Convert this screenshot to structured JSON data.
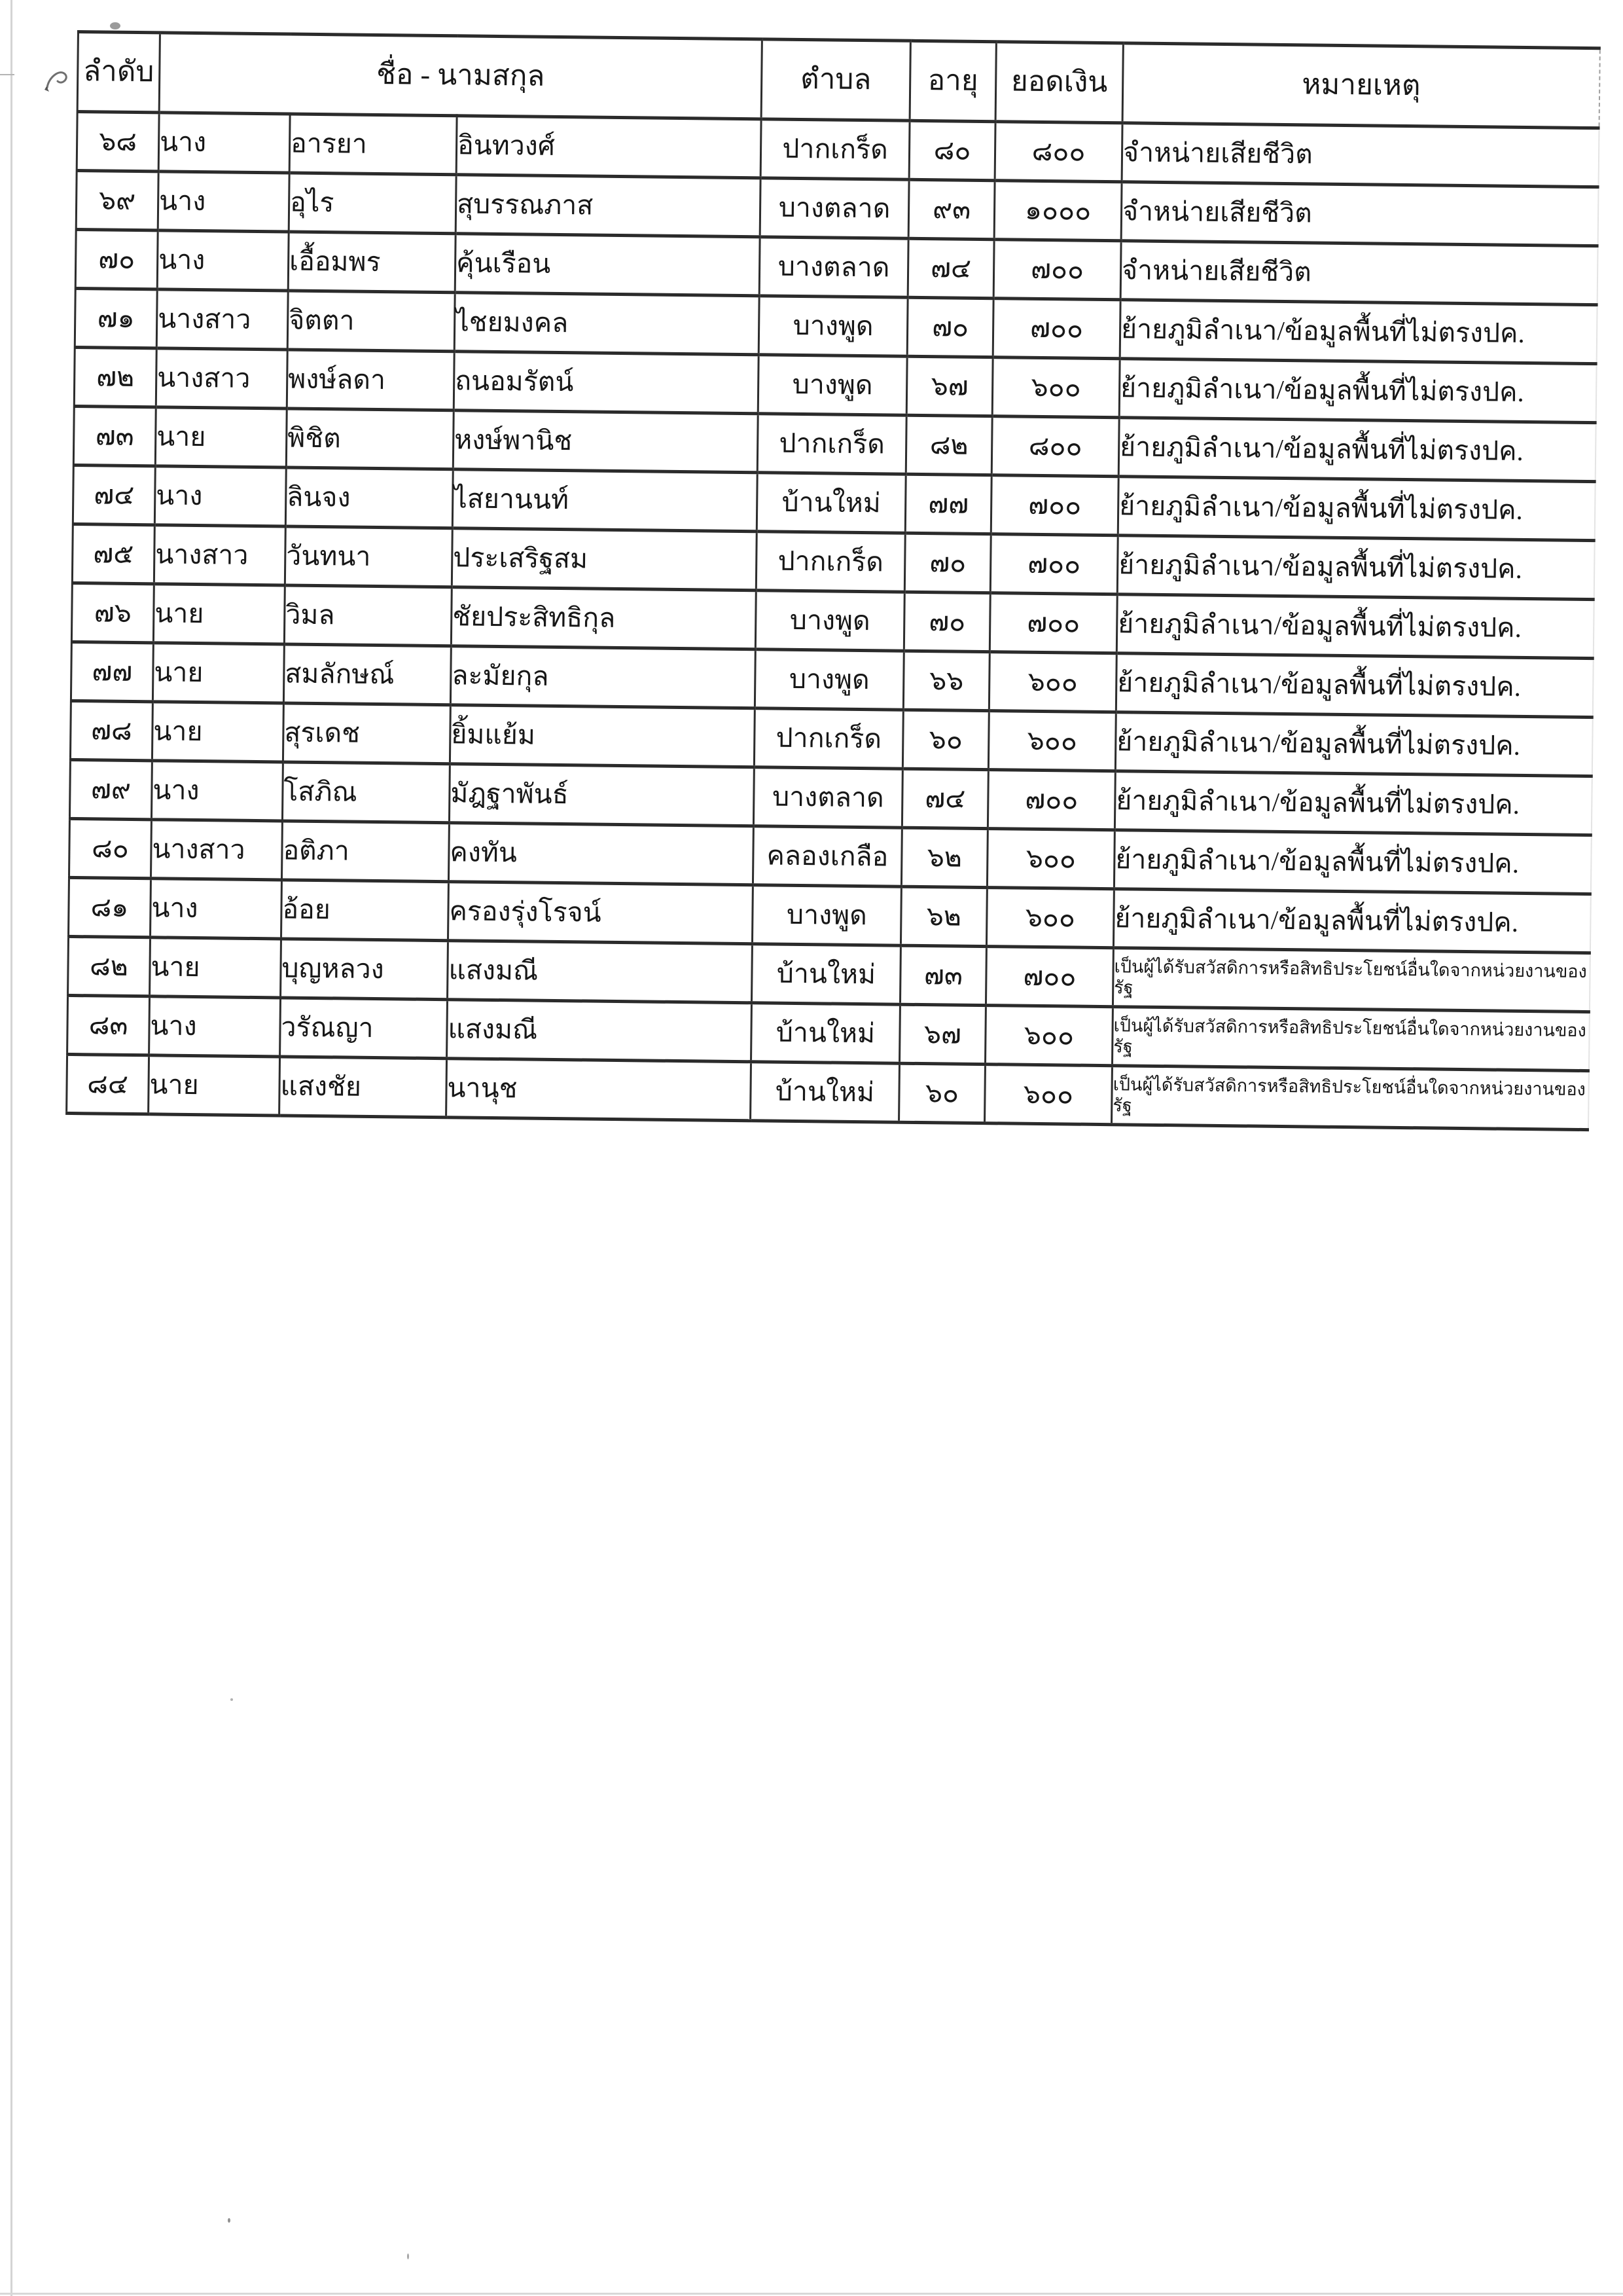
{
  "table": {
    "headers": {
      "index": "ลำดับ",
      "name": "ชื่อ - นามสกุล",
      "subdistrict": "ตำบล",
      "age": "อายุ",
      "amount": "ยอดเงิน",
      "remark": "หมายเหตุ"
    },
    "rows": [
      {
        "no": "๖๘",
        "title": "นาง",
        "first_name": "อารยา",
        "last_name": "อินทวงศ์",
        "subdistrict": "ปากเกร็ด",
        "age": "๘๐",
        "amount": "๘๐๐",
        "remark": "จำหน่ายเสียชีวิต",
        "remark_small": false
      },
      {
        "no": "๖๙",
        "title": "นาง",
        "first_name": "อุไร",
        "last_name": "สุบรรณภาส",
        "subdistrict": "บางตลาด",
        "age": "๙๓",
        "amount": "๑๐๐๐",
        "remark": "จำหน่ายเสียชีวิต",
        "remark_small": false
      },
      {
        "no": "๗๐",
        "title": "นาง",
        "first_name": "เอื้อมพร",
        "last_name": "คุ้นเรือน",
        "subdistrict": "บางตลาด",
        "age": "๗๔",
        "amount": "๗๐๐",
        "remark": "จำหน่ายเสียชีวิต",
        "remark_small": false
      },
      {
        "no": "๗๑",
        "title": "นางสาว",
        "first_name": "จิตตา",
        "last_name": "ไชยมงคล",
        "subdistrict": "บางพูด",
        "age": "๗๐",
        "amount": "๗๐๐",
        "remark": "ย้ายภูมิลำเนา/ข้อมูลพื้นที่ไม่ตรงปค.",
        "remark_small": false
      },
      {
        "no": "๗๒",
        "title": "นางสาว",
        "first_name": "พงษ์ลดา",
        "last_name": "ถนอมรัตน์",
        "subdistrict": "บางพูด",
        "age": "๖๗",
        "amount": "๖๐๐",
        "remark": "ย้ายภูมิลำเนา/ข้อมูลพื้นที่ไม่ตรงปค.",
        "remark_small": false
      },
      {
        "no": "๗๓",
        "title": "นาย",
        "first_name": "พิชิต",
        "last_name": "หงษ์พานิช",
        "subdistrict": "ปากเกร็ด",
        "age": "๘๒",
        "amount": "๘๐๐",
        "remark": "ย้ายภูมิลำเนา/ข้อมูลพื้นที่ไม่ตรงปค.",
        "remark_small": false
      },
      {
        "no": "๗๔",
        "title": "นาง",
        "first_name": "ลินจง",
        "last_name": "ไสยานนท์",
        "subdistrict": "บ้านใหม่",
        "age": "๗๗",
        "amount": "๗๐๐",
        "remark": "ย้ายภูมิลำเนา/ข้อมูลพื้นที่ไม่ตรงปค.",
        "remark_small": false
      },
      {
        "no": "๗๕",
        "title": "นางสาว",
        "first_name": "วันทนา",
        "last_name": "ประเสริฐสม",
        "subdistrict": "ปากเกร็ด",
        "age": "๗๐",
        "amount": "๗๐๐",
        "remark": "ย้ายภูมิลำเนา/ข้อมูลพื้นที่ไม่ตรงปค.",
        "remark_small": false
      },
      {
        "no": "๗๖",
        "title": "นาย",
        "first_name": "วิมล",
        "last_name": "ชัยประสิทธิกุล",
        "subdistrict": "บางพูด",
        "age": "๗๐",
        "amount": "๗๐๐",
        "remark": "ย้ายภูมิลำเนา/ข้อมูลพื้นที่ไม่ตรงปค.",
        "remark_small": false
      },
      {
        "no": "๗๗",
        "title": "นาย",
        "first_name": "สมลักษณ์",
        "last_name": "ละมัยกุล",
        "subdistrict": "บางพูด",
        "age": "๖๖",
        "amount": "๖๐๐",
        "remark": "ย้ายภูมิลำเนา/ข้อมูลพื้นที่ไม่ตรงปค.",
        "remark_small": false
      },
      {
        "no": "๗๘",
        "title": "นาย",
        "first_name": "สุรเดช",
        "last_name": "ยิ้มแย้ม",
        "subdistrict": "ปากเกร็ด",
        "age": "๖๐",
        "amount": "๖๐๐",
        "remark": "ย้ายภูมิลำเนา/ข้อมูลพื้นที่ไม่ตรงปค.",
        "remark_small": false
      },
      {
        "no": "๗๙",
        "title": "นาง",
        "first_name": "โสภิณ",
        "last_name": "มัฎฐาพันธ์",
        "subdistrict": "บางตลาด",
        "age": "๗๔",
        "amount": "๗๐๐",
        "remark": "ย้ายภูมิลำเนา/ข้อมูลพื้นที่ไม่ตรงปค.",
        "remark_small": false
      },
      {
        "no": "๘๐",
        "title": "นางสาว",
        "first_name": "อติภา",
        "last_name": "คงทัน",
        "subdistrict": "คลองเกลือ",
        "age": "๖๒",
        "amount": "๖๐๐",
        "remark": "ย้ายภูมิลำเนา/ข้อมูลพื้นที่ไม่ตรงปค.",
        "remark_small": false
      },
      {
        "no": "๘๑",
        "title": "นาง",
        "first_name": "อ้อย",
        "last_name": "ครองรุ่งโรจน์",
        "subdistrict": "บางพูด",
        "age": "๖๒",
        "amount": "๖๐๐",
        "remark": "ย้ายภูมิลำเนา/ข้อมูลพื้นที่ไม่ตรงปค.",
        "remark_small": false
      },
      {
        "no": "๘๒",
        "title": "นาย",
        "first_name": "บุญหลวง",
        "last_name": "แสงมณี",
        "subdistrict": "บ้านใหม่",
        "age": "๗๓",
        "amount": "๗๐๐",
        "remark": "เป็นผู้ได้รับสวัสดิการหรือสิทธิประโยชน์อื่นใดจากหน่วยงานของรัฐ",
        "remark_small": true
      },
      {
        "no": "๘๓",
        "title": "นาง",
        "first_name": "วรัณญา",
        "last_name": "แสงมณี",
        "subdistrict": "บ้านใหม่",
        "age": "๖๗",
        "amount": "๖๐๐",
        "remark": "เป็นผู้ได้รับสวัสดิการหรือสิทธิประโยชน์อื่นใดจากหน่วยงานของรัฐ",
        "remark_small": true
      },
      {
        "no": "๘๔",
        "title": "นาย",
        "first_name": "แสงชัย",
        "last_name": "นานุช",
        "subdistrict": "บ้านใหม่",
        "age": "๖๐",
        "amount": "๖๐๐",
        "remark": "เป็นผู้ได้รับสวัสดิการหรือสิทธิประโยชน์อื่นใดจากหน่วยงานของรัฐ",
        "remark_small": true
      }
    ]
  }
}
